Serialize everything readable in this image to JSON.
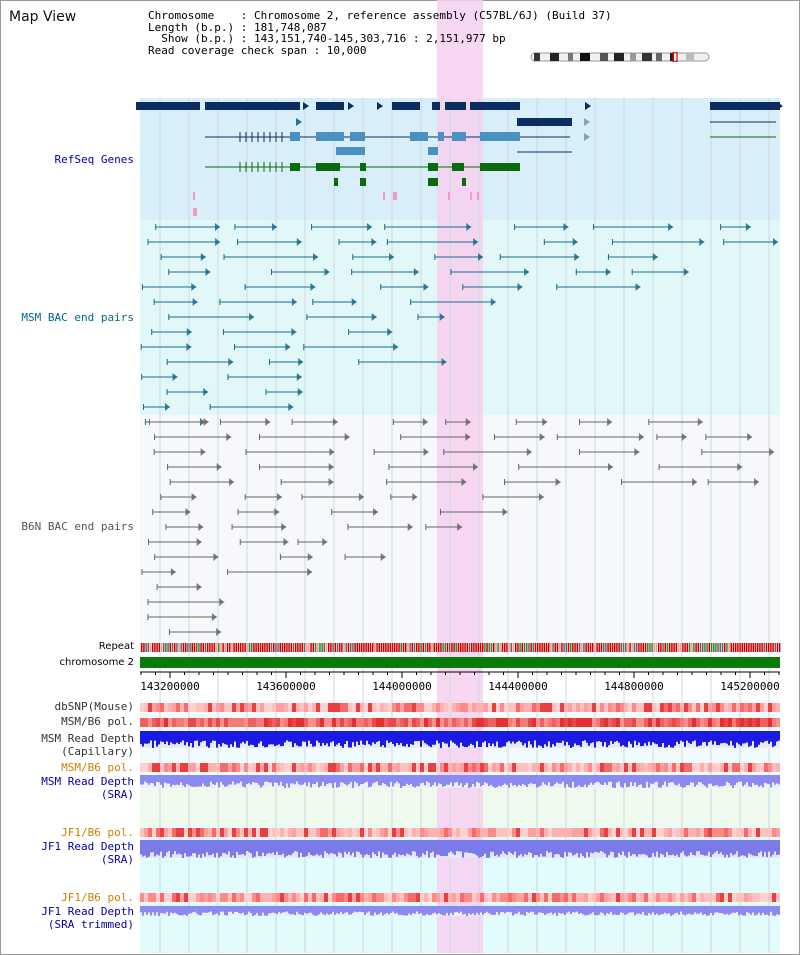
{
  "title": "Map View",
  "info": {
    "chromosome": "Chromosome    : Chromosome 2, reference assembly (C57BL/6J) (Build 37)",
    "length": "Length (b.p.) : 181,748,087",
    "show": "  Show (b.p.) : 143,151,740-145,303,716 : 2,151,977 bp",
    "read_coverage": "Read coverage check span : 10,000"
  },
  "tracks": {
    "refseq": "RefSeq Genes",
    "msm_bac": "MSM BAC end pairs",
    "b6n_bac": "B6N BAC end pairs",
    "repeat": "Repeat",
    "chromosome": "chromosome 2",
    "dbsnp": "dbSNP(Mouse)",
    "msm_b6_pol": "MSM/B6 pol.",
    "msm_read_depth_cap_1": "MSM Read Depth",
    "msm_read_depth_cap_2": "(Capillary)",
    "msm_b6_pol_2": "MSM/B6 pol.",
    "msm_read_depth_sra_1": "MSM Read Depth",
    "msm_read_depth_sra_2": "(SRA)",
    "jf1_b6_pol": "JF1/B6 pol.",
    "jf1_read_depth_sra_1": "JF1 Read Depth",
    "jf1_read_depth_sra_2": "(SRA)",
    "jf1_b6_pol_2": "JF1/B6 pol.",
    "jf1_read_depth_trim_1": "JF1 Read Depth",
    "jf1_read_depth_trim_2": "(SRA trimmed)"
  },
  "axis": {
    "ticks": [
      "143200000",
      "143600000",
      "144000000",
      "144400000",
      "144800000",
      "145200000"
    ]
  },
  "colors": {
    "refseq_dark": "#0d2d5e",
    "refseq_mid": "#4a90c0",
    "refseq_green": "#0a6b0a",
    "msm_bac": "#1a6a8a",
    "b6n_bac": "#666666",
    "highlight": "#f7d0f0",
    "chromosome": "#0a7a0a",
    "label_blue": "#0000aa",
    "label_orange": "#d08000",
    "label_teal": "#006a8a"
  }
}
